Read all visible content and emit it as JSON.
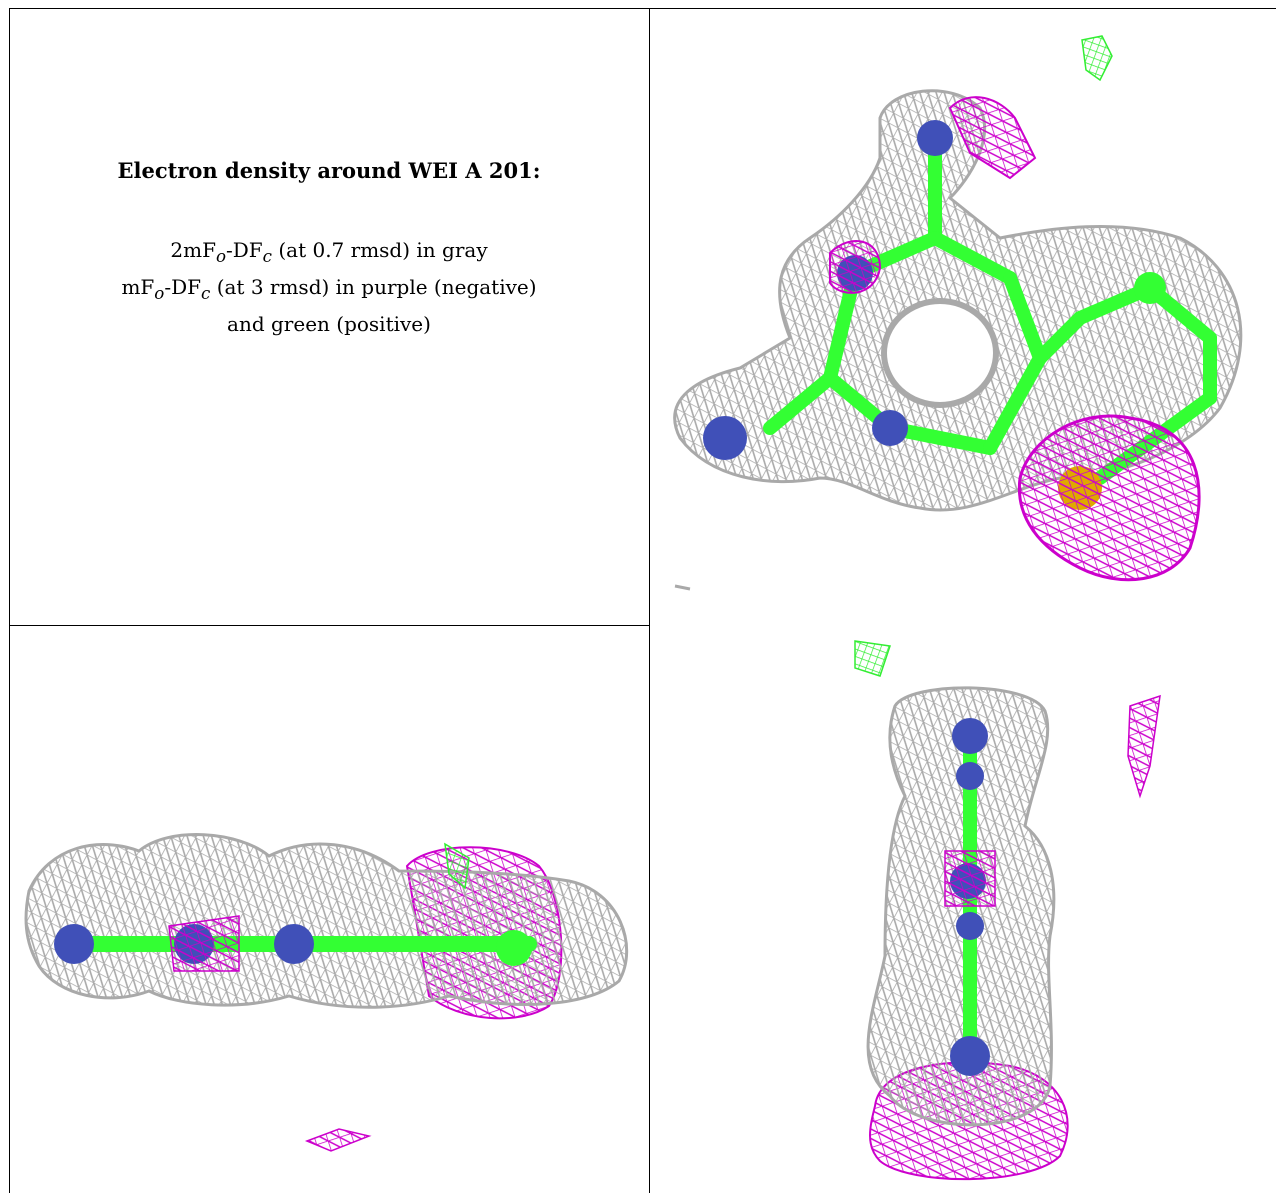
{
  "caption": {
    "title": "Electron density around WEI A 201:",
    "line1_a": "2mF",
    "line1_sub1": "o",
    "line1_b": "-DF",
    "line1_sub2": "c",
    "line1_c": " (at 0.7 rmsd) in gray",
    "line2_a": "mF",
    "line2_sub1": "o",
    "line2_b": "-DF",
    "line2_sub2": "c",
    "line2_c": " (at 3 rmsd) in purple (negative)",
    "line3": "and green (positive)"
  },
  "colors": {
    "gray_mesh": "#a9a9a9",
    "negative_mesh": "#cc00cc",
    "positive_mesh": "#33ee33",
    "nitrogen": "#4050b8",
    "carbon": "#33ff33",
    "sulfur": "#e0a800"
  },
  "panels": [
    {
      "name": "view-top-right",
      "content": "density-view"
    },
    {
      "name": "view-bottom-left",
      "content": "density-view"
    },
    {
      "name": "view-bottom-right",
      "content": "density-view"
    }
  ]
}
